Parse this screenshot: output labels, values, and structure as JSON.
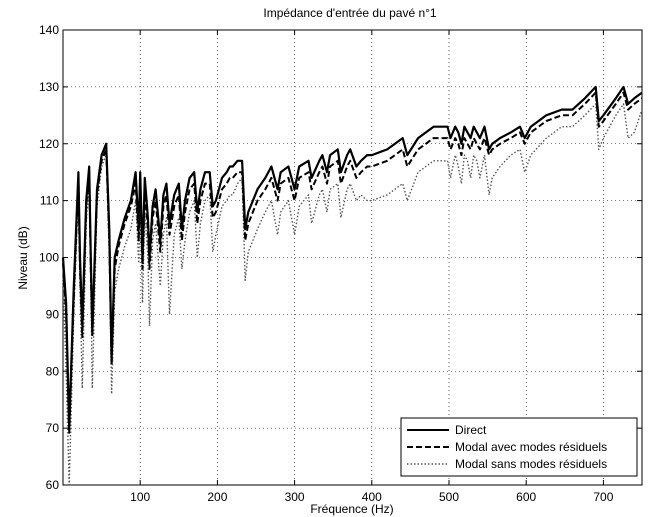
{
  "chart_data": {
    "type": "line",
    "title": "Impédance d'entrée du pavé n°1",
    "xlabel": "Fréquence (Hz)",
    "ylabel": "Niveau (dB)",
    "xlim": [
      0,
      750
    ],
    "ylim": [
      60,
      140
    ],
    "xticks": [
      100,
      200,
      300,
      400,
      500,
      600,
      700
    ],
    "yticks": [
      60,
      70,
      80,
      90,
      100,
      110,
      120,
      130,
      140
    ],
    "grid": true,
    "legend_position": "bottom-right",
    "series": [
      {
        "name": "Direct",
        "style": "solid",
        "color": "#000000",
        "x": [
          0,
          4,
          8,
          14,
          20,
          22,
          25,
          30,
          34,
          36,
          38,
          44,
          50,
          56,
          60,
          63,
          67,
          72,
          80,
          88,
          94,
          98,
          100,
          103,
          106,
          110,
          112,
          116,
          120,
          126,
          130,
          134,
          138,
          144,
          150,
          154,
          158,
          164,
          170,
          174,
          178,
          184,
          190,
          194,
          198,
          206,
          212,
          216,
          220,
          226,
          232,
          236,
          240,
          252,
          262,
          270,
          278,
          282,
          292,
          300,
          306,
          318,
          322,
          332,
          336,
          342,
          346,
          356,
          360,
          368,
          372,
          380,
          386,
          394,
          400,
          420,
          440,
          446,
          460,
          480,
          498,
          502,
          508,
          512,
          516,
          520,
          524,
          528,
          532,
          536,
          540,
          546,
          552,
          556,
          566,
          580,
          592,
          598,
          606,
          626,
          646,
          660,
          676,
          690,
          694,
          700,
          716,
          726,
          732,
          740,
          750
        ],
        "y": [
          100,
          92,
          70,
          95,
          115,
          100,
          88,
          110,
          116,
          100,
          87,
          112,
          118,
          120,
          105,
          82,
          100,
          103,
          107,
          110,
          115,
          105,
          115,
          100,
          114,
          107,
          100,
          109,
          112,
          103,
          111,
          113,
          106,
          111,
          113,
          105,
          110,
          114,
          115,
          108,
          112,
          115,
          115,
          109,
          110,
          114,
          115,
          116,
          116,
          117,
          117,
          105,
          108,
          112,
          114,
          116,
          112,
          115,
          116,
          112,
          116,
          117,
          114,
          117,
          118,
          115,
          118,
          119,
          115,
          118,
          119,
          116,
          117,
          118,
          118,
          119,
          121,
          118,
          121,
          123,
          123,
          121,
          123,
          122,
          120,
          123,
          122,
          121,
          123,
          122,
          121,
          123,
          119,
          120,
          121,
          122,
          123,
          121,
          123,
          125,
          126,
          126,
          128,
          130,
          124,
          125,
          128,
          130,
          127,
          128,
          129
        ]
      },
      {
        "name": "Modal avec modes résiduels",
        "style": "dashed",
        "color": "#000000",
        "x": [
          0,
          4,
          8,
          14,
          20,
          22,
          25,
          30,
          34,
          36,
          38,
          44,
          50,
          56,
          60,
          63,
          67,
          72,
          80,
          88,
          94,
          98,
          100,
          103,
          106,
          110,
          112,
          116,
          120,
          126,
          130,
          134,
          138,
          144,
          150,
          154,
          158,
          164,
          170,
          174,
          178,
          184,
          190,
          194,
          198,
          206,
          212,
          216,
          220,
          226,
          232,
          236,
          240,
          252,
          262,
          270,
          278,
          282,
          292,
          300,
          306,
          318,
          322,
          332,
          336,
          342,
          346,
          356,
          360,
          368,
          372,
          380,
          386,
          394,
          400,
          420,
          440,
          446,
          460,
          480,
          498,
          502,
          508,
          512,
          516,
          520,
          524,
          528,
          532,
          536,
          540,
          546,
          552,
          556,
          566,
          580,
          592,
          598,
          606,
          626,
          646,
          660,
          676,
          690,
          694,
          700,
          716,
          726,
          732,
          740,
          750
        ],
        "y": [
          99,
          90,
          69,
          93,
          114,
          98,
          86,
          109,
          115,
          98,
          86,
          111,
          117,
          119,
          103,
          81,
          98,
          102,
          106,
          109,
          113,
          103,
          113,
          98,
          112,
          105,
          98,
          107,
          110,
          101,
          109,
          111,
          104,
          109,
          111,
          103,
          108,
          112,
          113,
          106,
          110,
          113,
          113,
          107,
          108,
          112,
          113,
          114,
          114,
          115,
          115,
          103,
          106,
          110,
          112,
          114,
          110,
          113,
          114,
          110,
          114,
          115,
          112,
          115,
          116,
          113,
          116,
          117,
          113,
          116,
          117,
          114,
          115,
          116,
          116,
          117,
          119,
          116,
          119,
          121,
          121,
          119,
          121,
          120,
          118,
          121,
          120,
          119,
          121,
          120,
          119,
          121,
          118,
          119,
          120,
          121,
          122,
          120,
          122,
          124,
          125,
          125,
          127,
          129,
          123,
          124,
          127,
          129,
          126,
          127,
          128
        ]
      },
      {
        "name": "Modal sans modes résiduels",
        "style": "dotted",
        "color": "#555555",
        "x": [
          0,
          4,
          8,
          14,
          20,
          22,
          25,
          30,
          34,
          36,
          38,
          44,
          50,
          56,
          60,
          63,
          67,
          72,
          80,
          88,
          94,
          98,
          100,
          103,
          106,
          110,
          112,
          116,
          120,
          126,
          130,
          134,
          138,
          144,
          150,
          154,
          158,
          164,
          170,
          174,
          178,
          184,
          190,
          194,
          198,
          206,
          212,
          216,
          220,
          226,
          232,
          236,
          240,
          252,
          262,
          270,
          278,
          282,
          292,
          300,
          306,
          318,
          322,
          332,
          336,
          342,
          346,
          356,
          360,
          368,
          372,
          380,
          386,
          394,
          400,
          420,
          440,
          446,
          460,
          480,
          498,
          502,
          508,
          512,
          516,
          520,
          524,
          528,
          532,
          536,
          540,
          546,
          552,
          556,
          566,
          580,
          592,
          598,
          606,
          626,
          646,
          660,
          676,
          690,
          694,
          700,
          716,
          726,
          732,
          740,
          750
        ],
        "y": [
          97,
          80,
          60,
          90,
          112,
          95,
          77,
          106,
          113,
          95,
          77,
          109,
          116,
          118,
          100,
          76,
          94,
          98,
          102,
          105,
          110,
          99,
          110,
          92,
          108,
          100,
          88,
          103,
          106,
          95,
          104,
          107,
          90,
          104,
          107,
          98,
          103,
          108,
          110,
          100,
          106,
          110,
          111,
          101,
          104,
          109,
          110,
          111,
          111,
          113,
          114,
          96,
          101,
          105,
          108,
          110,
          104,
          108,
          110,
          104,
          109,
          111,
          106,
          111,
          112,
          108,
          112,
          113,
          107,
          112,
          113,
          110,
          111,
          110,
          110,
          111,
          113,
          110,
          115,
          117,
          117,
          114,
          118,
          116,
          113,
          118,
          117,
          114,
          118,
          117,
          114,
          118,
          111,
          114,
          116,
          118,
          119,
          115,
          118,
          121,
          123,
          123,
          125,
          127,
          119,
          121,
          125,
          127,
          121,
          122,
          126
        ]
      }
    ]
  }
}
